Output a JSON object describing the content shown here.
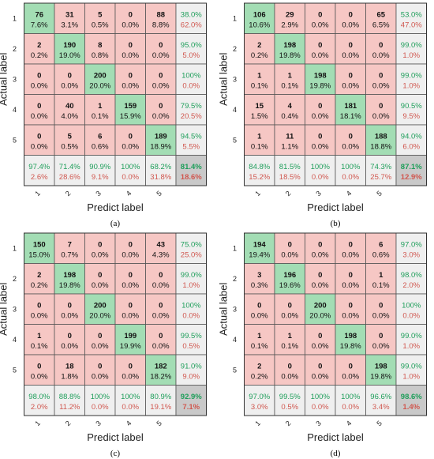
{
  "colors": {
    "correct": "#a3ddb4",
    "error": "#f6c7c4",
    "summary": "#efefef",
    "overall": "#c9c9c9",
    "good_text": "#1e9e5a",
    "bad_text": "#d0574f",
    "grid": "#555555"
  },
  "chart_data": [
    {
      "type": "heatmap",
      "panel": "(a)",
      "xlabel": "Predict label",
      "ylabel": "Actual label",
      "class_labels": [
        "1",
        "2",
        "3",
        "4",
        "5"
      ],
      "matrix": [
        [
          76,
          31,
          5,
          0,
          88
        ],
        [
          2,
          190,
          8,
          0,
          0
        ],
        [
          0,
          0,
          200,
          0,
          0
        ],
        [
          0,
          40,
          1,
          159,
          0
        ],
        [
          0,
          5,
          6,
          0,
          189
        ]
      ],
      "cell_pct": [
        [
          "7.6%",
          "3.1%",
          "0.5%",
          "0.0%",
          "8.8%"
        ],
        [
          "0.2%",
          "19.0%",
          "0.8%",
          "0.0%",
          "0.0%"
        ],
        [
          "0.0%",
          "0.0%",
          "20.0%",
          "0.0%",
          "0.0%"
        ],
        [
          "0.0%",
          "4.0%",
          "0.1%",
          "15.9%",
          "0.0%"
        ],
        [
          "0.0%",
          "0.5%",
          "0.6%",
          "0.0%",
          "18.9%"
        ]
      ],
      "row_summary": [
        [
          "38.0%",
          "62.0%"
        ],
        [
          "95.0%",
          "5.0%"
        ],
        [
          "100%",
          "0.0%"
        ],
        [
          "79.5%",
          "20.5%"
        ],
        [
          "94.5%",
          "5.5%"
        ]
      ],
      "col_summary": [
        [
          "97.4%",
          "2.6%"
        ],
        [
          "71.4%",
          "28.6%"
        ],
        [
          "90.9%",
          "9.1%"
        ],
        [
          "100%",
          "0.0%"
        ],
        [
          "68.2%",
          "31.8%"
        ]
      ],
      "overall": [
        "81.4%",
        "18.6%"
      ]
    },
    {
      "type": "heatmap",
      "panel": "(b)",
      "xlabel": "Predict label",
      "ylabel": "Actual label",
      "class_labels": [
        "1",
        "2",
        "3",
        "4",
        "5"
      ],
      "matrix": [
        [
          106,
          29,
          0,
          0,
          65
        ],
        [
          2,
          198,
          0,
          0,
          0
        ],
        [
          1,
          1,
          198,
          0,
          0
        ],
        [
          15,
          4,
          0,
          181,
          0
        ],
        [
          1,
          11,
          0,
          0,
          188
        ]
      ],
      "cell_pct": [
        [
          "10.6%",
          "2.9%",
          "0.0%",
          "0.0%",
          "6.5%"
        ],
        [
          "0.2%",
          "19.8%",
          "0.0%",
          "0.0%",
          "0.0%"
        ],
        [
          "0.1%",
          "0.1%",
          "19.8%",
          "0.0%",
          "0.0%"
        ],
        [
          "1.5%",
          "0.4%",
          "0.0%",
          "18.1%",
          "0.0%"
        ],
        [
          "0.1%",
          "1.1%",
          "0.0%",
          "0.0%",
          "18.8%"
        ]
      ],
      "row_summary": [
        [
          "53.0%",
          "47.0%"
        ],
        [
          "99.0%",
          "1.0%"
        ],
        [
          "99.0%",
          "1.0%"
        ],
        [
          "90.5%",
          "9.5%"
        ],
        [
          "94.0%",
          "6.0%"
        ]
      ],
      "col_summary": [
        [
          "84.8%",
          "15.2%"
        ],
        [
          "81.5%",
          "18.5%"
        ],
        [
          "100%",
          "0.0%"
        ],
        [
          "100%",
          "0.0%"
        ],
        [
          "74.3%",
          "25.7%"
        ]
      ],
      "overall": [
        "87.1%",
        "12.9%"
      ]
    },
    {
      "type": "heatmap",
      "panel": "(c)",
      "xlabel": "Predict label",
      "ylabel": "Actual label",
      "class_labels": [
        "1",
        "2",
        "3",
        "4",
        "5"
      ],
      "matrix": [
        [
          150,
          7,
          0,
          0,
          43
        ],
        [
          2,
          198,
          0,
          0,
          0
        ],
        [
          0,
          0,
          200,
          0,
          0
        ],
        [
          1,
          0,
          0,
          199,
          0
        ],
        [
          0,
          18,
          0,
          0,
          182
        ]
      ],
      "cell_pct": [
        [
          "15.0%",
          "0.7%",
          "0.0%",
          "0.0%",
          "4.3%"
        ],
        [
          "0.2%",
          "19.8%",
          "0.0%",
          "0.0%",
          "0.0%"
        ],
        [
          "0.0%",
          "0.0%",
          "20.0%",
          "0.0%",
          "0.0%"
        ],
        [
          "0.1%",
          "0.0%",
          "0.0%",
          "19.9%",
          "0.0%"
        ],
        [
          "0.0%",
          "1.8%",
          "0.0%",
          "0.0%",
          "18.2%"
        ]
      ],
      "row_summary": [
        [
          "75.0%",
          "25.0%"
        ],
        [
          "99.0%",
          "1.0%"
        ],
        [
          "100%",
          "0.0%"
        ],
        [
          "99.5%",
          "0.5%"
        ],
        [
          "91.0%",
          "9.0%"
        ]
      ],
      "col_summary": [
        [
          "98.0%",
          "2.0%"
        ],
        [
          "88.8%",
          "11.2%"
        ],
        [
          "100%",
          "0.0%"
        ],
        [
          "100%",
          "0.0%"
        ],
        [
          "80.9%",
          "19.1%"
        ]
      ],
      "overall": [
        "92.9%",
        "7.1%"
      ]
    },
    {
      "type": "heatmap",
      "panel": "(d)",
      "xlabel": "Predict label",
      "ylabel": "Actual label",
      "class_labels": [
        "1",
        "2",
        "3",
        "4",
        "5"
      ],
      "matrix": [
        [
          194,
          0,
          0,
          0,
          6
        ],
        [
          3,
          196,
          0,
          0,
          1
        ],
        [
          0,
          0,
          200,
          0,
          0
        ],
        [
          1,
          1,
          0,
          198,
          0
        ],
        [
          2,
          0,
          0,
          0,
          198
        ]
      ],
      "cell_pct": [
        [
          "19.4%",
          "0.0%",
          "0.0%",
          "0.0%",
          "0.6%"
        ],
        [
          "0.3%",
          "19.6%",
          "0.0%",
          "0.0%",
          "0.1%"
        ],
        [
          "0.0%",
          "0.0%",
          "20.0%",
          "0.0%",
          "0.0%"
        ],
        [
          "0.1%",
          "0.1%",
          "0.0%",
          "19.8%",
          "0.0%"
        ],
        [
          "0.2%",
          "0.0%",
          "0.0%",
          "0.0%",
          "19.8%"
        ]
      ],
      "row_summary": [
        [
          "97.0%",
          "3.0%"
        ],
        [
          "98.0%",
          "2.0%"
        ],
        [
          "100%",
          "0.0%"
        ],
        [
          "99.0%",
          "1.0%"
        ],
        [
          "99.0%",
          "1.0%"
        ]
      ],
      "col_summary": [
        [
          "97.0%",
          "3.0%"
        ],
        [
          "99.5%",
          "0.5%"
        ],
        [
          "100%",
          "0.0%"
        ],
        [
          "100%",
          "0.0%"
        ],
        [
          "96.6%",
          "3.4%"
        ]
      ],
      "overall": [
        "98.6%",
        "1.4%"
      ]
    }
  ]
}
